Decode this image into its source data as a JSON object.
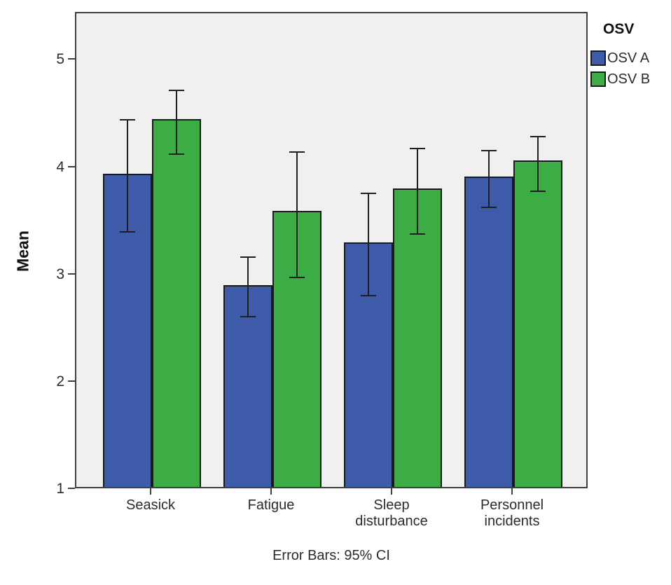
{
  "chart_data": {
    "type": "bar",
    "title": "",
    "xlabel": "",
    "ylabel": "Mean",
    "legend_title": "OSV",
    "legend_position": "top-right",
    "caption": "Error Bars: 95% CI",
    "error_bars": "95% CI",
    "grid": false,
    "plot_background": "#F0F0F0",
    "y_ticks": [
      1,
      2,
      3,
      4,
      5
    ],
    "ylim": [
      1,
      5.44
    ],
    "categories": [
      "Seasick",
      "Fatigue",
      "Sleep disturbance",
      "Personnel incidents"
    ],
    "series": [
      {
        "name": "OSV A",
        "color": "#3D5BA9",
        "values": [
          3.92,
          2.88,
          3.28,
          3.89
        ],
        "ci_low": [
          3.4,
          2.61,
          2.81,
          3.63
        ],
        "ci_high": [
          4.45,
          3.17,
          3.76,
          4.16
        ]
      },
      {
        "name": "OSV B",
        "color": "#3BAD44",
        "values": [
          4.43,
          3.57,
          3.78,
          4.04
        ],
        "ci_low": [
          4.13,
          2.98,
          3.38,
          3.78
        ],
        "ci_high": [
          4.72,
          4.15,
          4.18,
          4.29
        ]
      }
    ]
  }
}
